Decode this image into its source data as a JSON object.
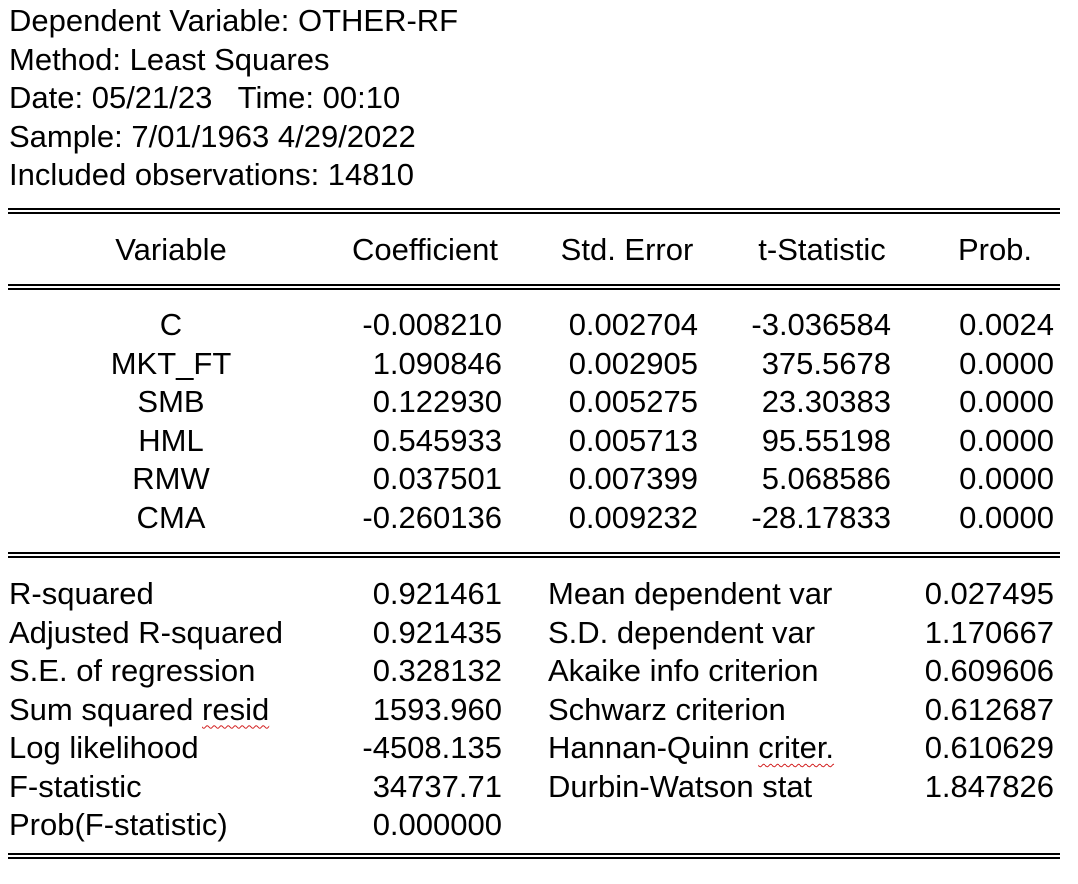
{
  "header": {
    "dependent_variable": "Dependent Variable: OTHER-RF",
    "method": "Method: Least Squares",
    "date_time": "Date: 05/21/23   Time: 00:10",
    "sample": "Sample: 7/01/1963 4/29/2022",
    "observations": "Included observations: 14810"
  },
  "coef_table": {
    "columns": [
      "Variable",
      "Coefficient",
      "Std. Error",
      "t-Statistic",
      "Prob."
    ],
    "rows": [
      [
        "C",
        "-0.008210",
        "0.002704",
        "-3.036584",
        "0.0024"
      ],
      [
        "MKT_FT",
        "1.090846",
        "0.002905",
        "375.5678",
        "0.0000"
      ],
      [
        "SMB",
        "0.122930",
        "0.005275",
        "23.30383",
        "0.0000"
      ],
      [
        "HML",
        "0.545933",
        "0.005713",
        "95.55198",
        "0.0000"
      ],
      [
        "RMW",
        "0.037501",
        "0.007399",
        "5.068586",
        "0.0000"
      ],
      [
        "CMA",
        "-0.260136",
        "0.009232",
        "-28.17833",
        "0.0000"
      ]
    ]
  },
  "stats": {
    "left": [
      {
        "label": "R-squared",
        "value": "0.921461"
      },
      {
        "label": "Adjusted R-squared",
        "value": "0.921435"
      },
      {
        "label": "S.E. of regression",
        "value": "0.328132"
      },
      {
        "label_pre": "Sum squared ",
        "label_flag": "resid",
        "value": "1593.960"
      },
      {
        "label": "Log likelihood",
        "value": "-4508.135"
      },
      {
        "label": "F-statistic",
        "value": "34737.71"
      },
      {
        "label": "Prob(F-statistic)",
        "value": "0.000000"
      }
    ],
    "right": [
      {
        "label": "Mean dependent var",
        "value": "0.027495"
      },
      {
        "label": "S.D. dependent var",
        "value": "1.170667"
      },
      {
        "label": "Akaike info criterion",
        "value": "0.609606"
      },
      {
        "label": "Schwarz criterion",
        "value": "0.612687"
      },
      {
        "label_pre": "Hannan-Quinn ",
        "label_flag": "criter.",
        "value": "0.610629"
      },
      {
        "label": "Durbin-Watson stat",
        "value": "1.847826"
      }
    ]
  }
}
